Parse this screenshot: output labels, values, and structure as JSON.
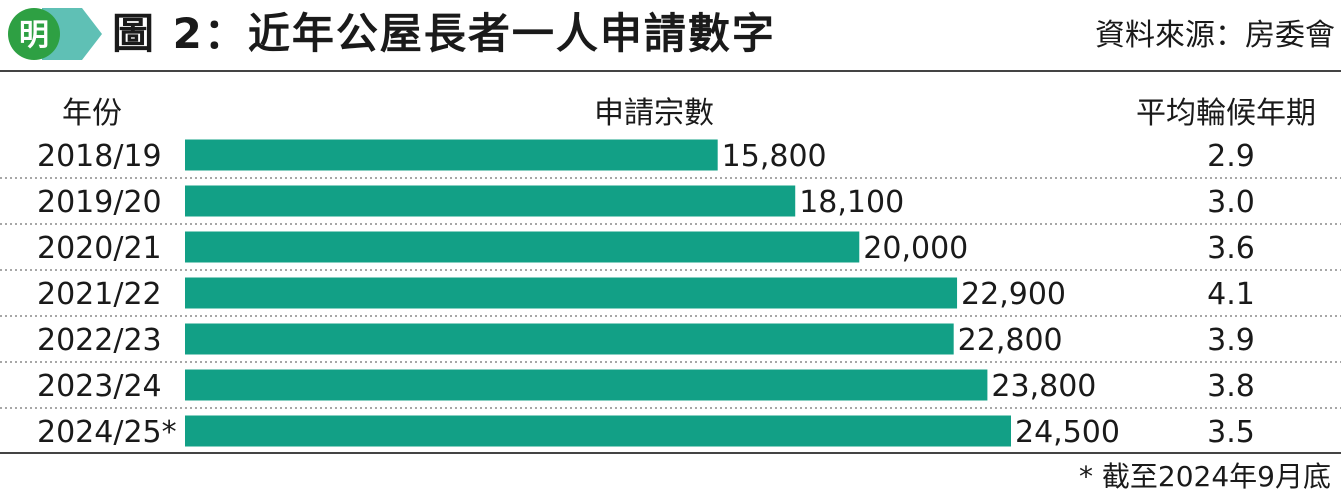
{
  "header": {
    "title": "圖 2：近年公屋長者一人申請數字",
    "source": "資料來源：房委會",
    "logo_text": "明"
  },
  "columns": {
    "year": "年份",
    "applications": "申請宗數",
    "wait": "平均輪候年期"
  },
  "footnote": "* 截至2024年9月底",
  "colors": {
    "bar": "#12a086",
    "logo_green": "#2ea043",
    "logo_teal": "#5fc0b5"
  },
  "chart_data": {
    "type": "bar",
    "orientation": "horizontal",
    "categories": [
      "2018/19",
      "2019/20",
      "2020/21",
      "2021/22",
      "2022/23",
      "2023/24",
      "2024/25*"
    ],
    "values": [
      15800,
      18100,
      20000,
      22900,
      22800,
      23800,
      24500
    ],
    "value_labels": [
      "15,800",
      "18,100",
      "20,000",
      "22,900",
      "22,800",
      "23,800",
      "24,500"
    ],
    "wait_years": [
      "2.9",
      "3.0",
      "3.6",
      "4.1",
      "3.9",
      "3.8",
      "3.5"
    ],
    "xlim": [
      0,
      24500
    ],
    "grid": false,
    "legend": "none"
  }
}
